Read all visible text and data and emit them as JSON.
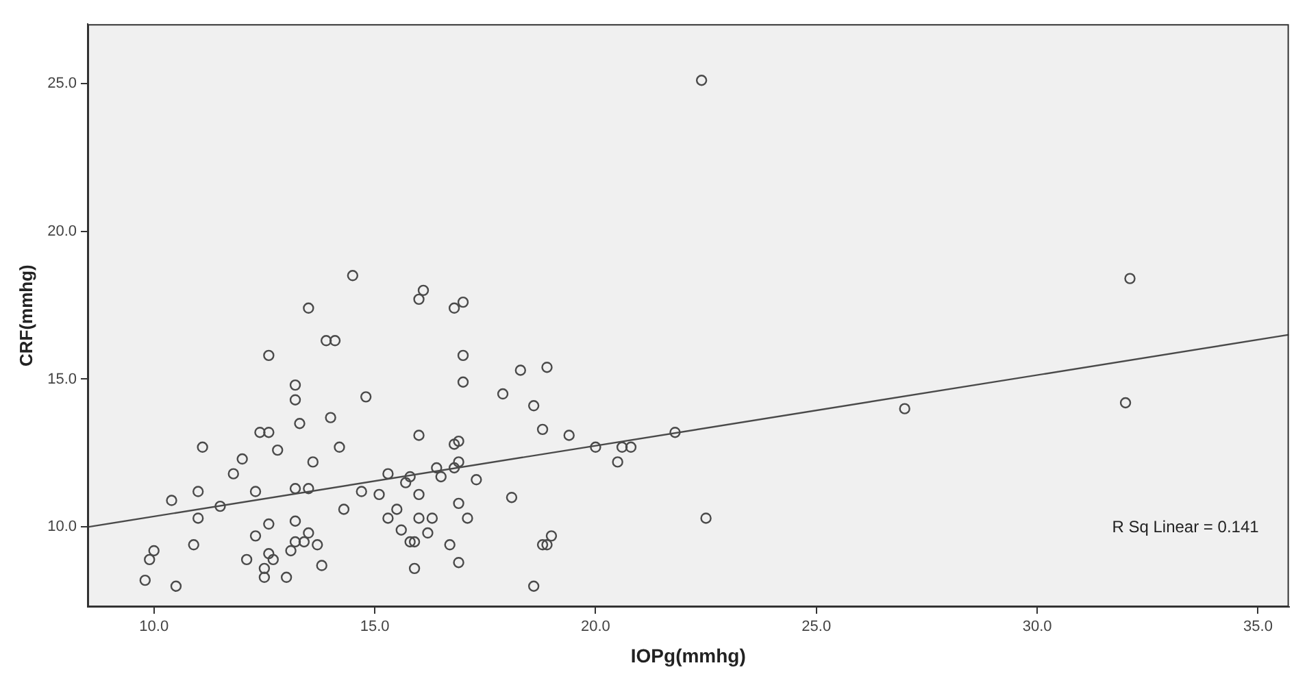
{
  "chart_data": {
    "type": "scatter",
    "xlabel": "IOPg(mmhg)",
    "ylabel": "CRF(mmhg)",
    "xlim": [
      8.5,
      35.7
    ],
    "ylim": [
      7.3,
      27.0
    ],
    "xticks": [
      {
        "value": 10,
        "label": "10.0"
      },
      {
        "value": 15,
        "label": "15.0"
      },
      {
        "value": 20,
        "label": "20.0"
      },
      {
        "value": 25,
        "label": "25.0"
      },
      {
        "value": 30,
        "label": "30.0"
      },
      {
        "value": 35,
        "label": "35.0"
      }
    ],
    "yticks": [
      {
        "value": 10,
        "label": "10.0"
      },
      {
        "value": 15,
        "label": "15.0"
      },
      {
        "value": 20,
        "label": "20.0"
      },
      {
        "value": 25,
        "label": "25.0"
      }
    ],
    "grid": false,
    "legend": false,
    "marker": "circle",
    "series": [
      {
        "color": "#4a4a4a",
        "x": [
          14.5,
          16.1,
          16.0,
          13.5,
          13.9,
          14.1,
          12.6,
          13.2,
          13.2,
          14.8,
          14.0,
          13.3,
          12.4,
          12.6,
          11.1,
          12.8,
          14.2,
          16.0,
          12.0,
          11.8,
          13.6,
          10.4,
          11.0,
          12.3,
          13.2,
          13.5,
          11.5,
          11.0,
          14.3,
          14.7,
          15.1,
          15.3,
          15.8,
          15.7,
          16.0,
          15.5,
          15.3,
          16.0,
          15.6,
          15.8,
          15.9,
          16.2,
          15.9,
          13.2,
          12.6,
          12.3,
          13.5,
          13.2,
          13.4,
          13.7,
          13.1,
          10.9,
          10.0,
          9.9,
          12.6,
          12.1,
          12.7,
          12.5,
          12.5,
          13.0,
          13.8,
          9.8,
          10.5,
          17.0,
          16.8,
          17.0,
          17.0,
          18.3,
          18.9,
          17.9,
          18.6,
          18.8,
          19.4,
          16.9,
          16.8,
          20.0,
          20.6,
          20.8,
          20.5,
          21.8,
          16.4,
          16.5,
          16.9,
          16.8,
          17.3,
          18.1,
          16.3,
          16.9,
          17.1,
          16.7,
          19.0,
          18.8,
          18.9,
          16.9,
          18.6,
          22.5,
          22.4,
          32.1,
          27.0,
          32.0
        ],
        "values": [
          18.5,
          18.0,
          17.7,
          17.4,
          16.3,
          16.3,
          15.8,
          14.8,
          14.3,
          14.4,
          13.7,
          13.5,
          13.2,
          13.2,
          12.7,
          12.6,
          12.7,
          13.1,
          12.3,
          11.8,
          12.2,
          10.9,
          11.2,
          11.2,
          11.3,
          11.3,
          10.7,
          10.3,
          10.6,
          11.2,
          11.1,
          11.8,
          11.7,
          11.5,
          11.1,
          10.6,
          10.3,
          10.3,
          9.9,
          9.5,
          9.5,
          9.8,
          8.6,
          10.2,
          10.1,
          9.7,
          9.8,
          9.5,
          9.5,
          9.4,
          9.2,
          9.4,
          9.2,
          8.9,
          9.1,
          8.9,
          8.9,
          8.6,
          8.3,
          8.3,
          8.7,
          8.2,
          8.0,
          17.6,
          17.4,
          15.8,
          14.9,
          15.3,
          15.4,
          14.5,
          14.1,
          13.3,
          13.1,
          12.9,
          12.8,
          12.7,
          12.7,
          12.7,
          12.2,
          13.2,
          12.0,
          11.7,
          12.2,
          12.0,
          11.6,
          11.0,
          10.3,
          10.8,
          10.3,
          9.4,
          9.7,
          9.4,
          9.4,
          8.8,
          8.0,
          10.3,
          25.1,
          18.4,
          14.0,
          14.2
        ]
      },
      {
        "type": "line",
        "color": "#4a4a4a",
        "marker": "none",
        "x": [
          8.5,
          35.7
        ],
        "values": [
          10.0,
          16.5
        ]
      }
    ],
    "annotations": [
      "R Sq Linear = 0.141"
    ]
  }
}
